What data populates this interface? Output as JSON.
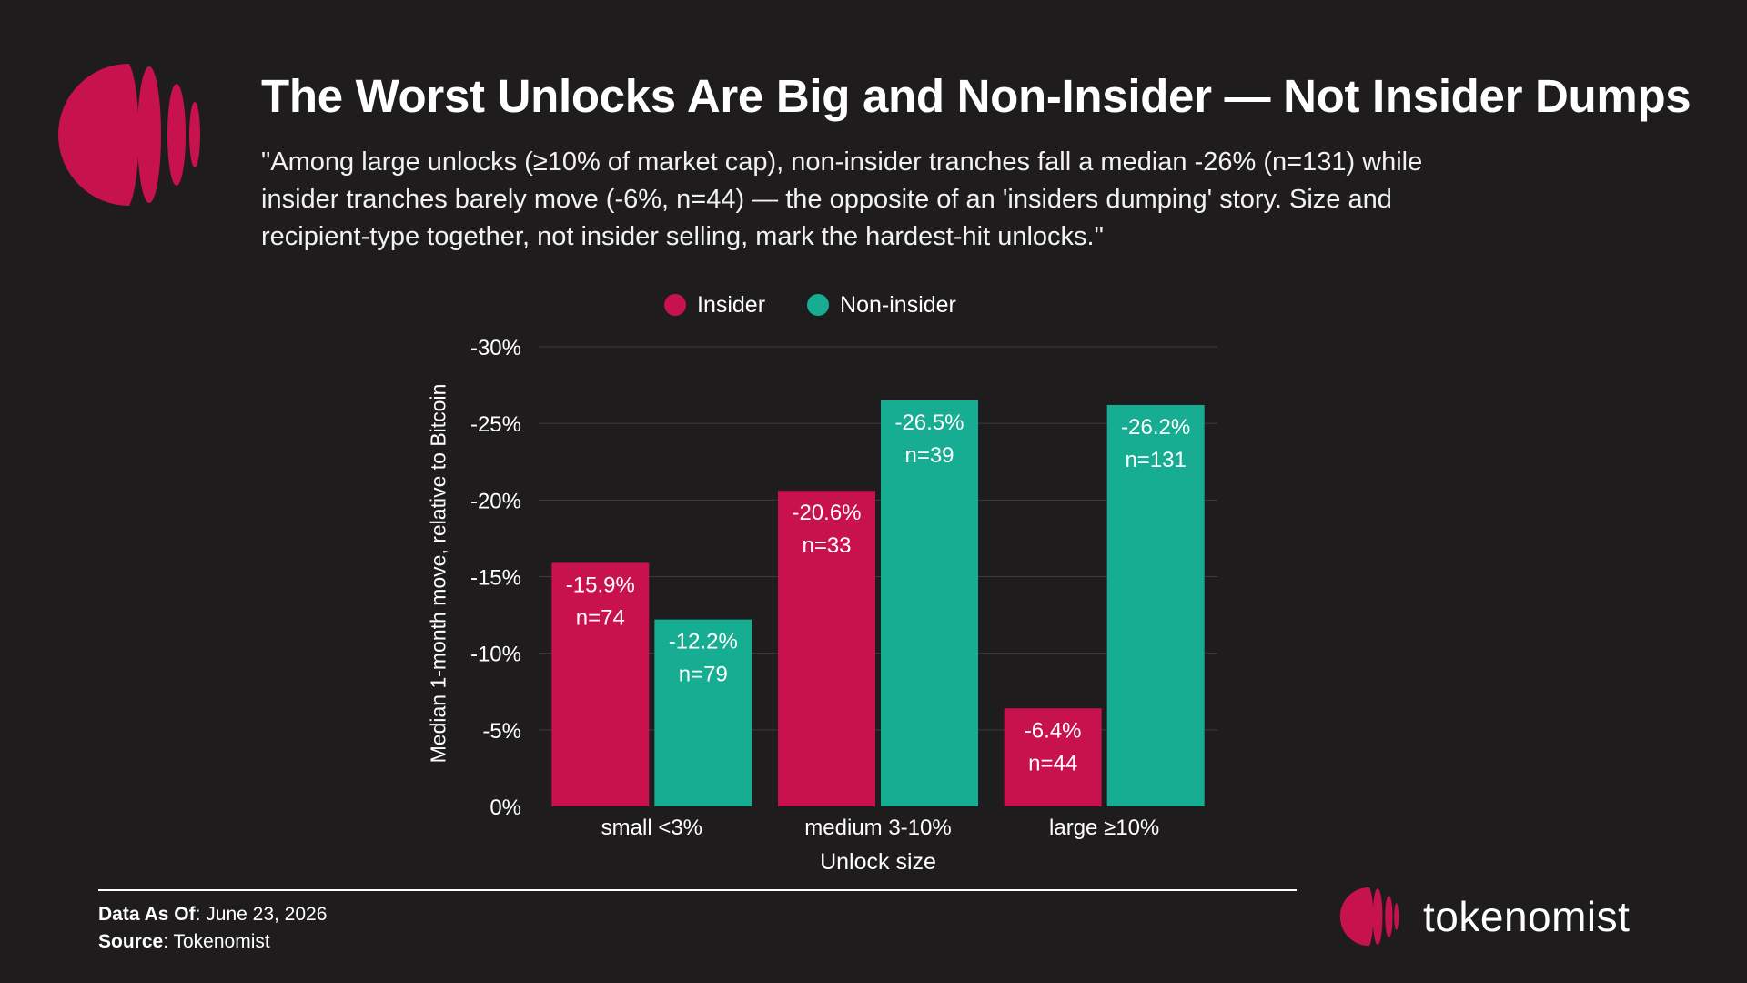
{
  "header": {
    "title": "The Worst Unlocks Are Big and Non-Insider — Not Insider Dumps",
    "subtitle": "\"Among large unlocks (≥10% of market cap), non-insider tranches fall a median -26% (n=131) while insider tranches barely move (-6%, n=44) — the opposite of an 'insiders dumping' story. Size and recipient-type together, not insider selling, mark the hardest-hit unlocks.\""
  },
  "colors": {
    "background": "#1e1c1c",
    "insider": "#c8124e",
    "non_insider": "#17ad92",
    "grid": "#3d3b3b"
  },
  "icons": {
    "logo": "tokenomist-striped-circle-icon",
    "brand": "tokenomist-small-striped-circle-icon"
  },
  "chart_data": {
    "type": "bar",
    "categories": [
      "small <3%",
      "medium 3-10%",
      "large ≥10%"
    ],
    "series": [
      {
        "name": "Insider",
        "values": [
          -15.9,
          -20.6,
          -6.4
        ],
        "labels": [
          "-15.9%",
          "-20.6%",
          "-6.4%"
        ],
        "n_labels": [
          "n=74",
          "n=33",
          "n=44"
        ]
      },
      {
        "name": "Non-insider",
        "values": [
          -12.2,
          -26.5,
          -26.2
        ],
        "labels": [
          "-12.2%",
          "-26.5%",
          "-26.2%"
        ],
        "n_labels": [
          "n=79",
          "n=39",
          "n=131"
        ]
      }
    ],
    "xlabel": "Unlock size",
    "ylabel": "Median 1-month move, relative to Bitcoin",
    "ylim": [
      0,
      -30
    ],
    "yticks": [
      "0%",
      "-5%",
      "-10%",
      "-15%",
      "-20%",
      "-25%",
      "-30%"
    ],
    "ytick_values": [
      0,
      -5,
      -10,
      -15,
      -20,
      -25,
      -30
    ],
    "legend": "top-center",
    "grid": true
  },
  "footer": {
    "data_as_of_label": "Data As Of",
    "data_as_of_value": ": June 23, 2026",
    "source_label": "Source",
    "source_value": ": Tokenomist"
  },
  "brand": {
    "name": "tokenomist"
  }
}
